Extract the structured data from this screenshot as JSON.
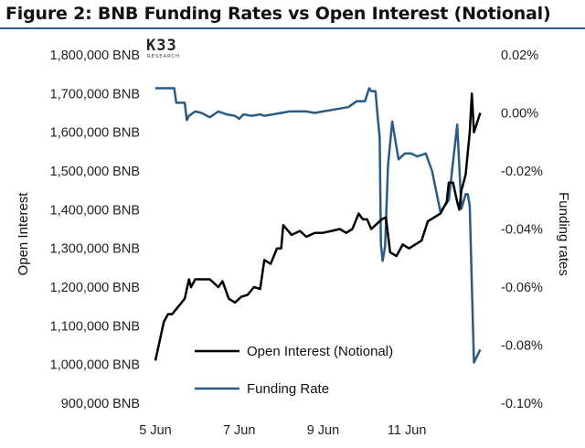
{
  "title": "Figure 2: BNB Funding Rates vs Open Interest (Notional)",
  "logo": {
    "main": "K33",
    "sub": "RESEARCH"
  },
  "colors": {
    "open_interest": "#000000",
    "funding_rate": "#2b5a84",
    "title_rule": "#2b5a84"
  },
  "chart_data": {
    "type": "line",
    "title": "Figure 2: BNB Funding Rates vs Open Interest (Notional)",
    "ylabel_left": "Open Interest",
    "ylabel_right": "Funding rates",
    "xlim": [
      5.0,
      12.85
    ],
    "ylim_left": [
      900000,
      1800000
    ],
    "ylim_right": [
      -0.1,
      0.02
    ],
    "x_ticks": [
      {
        "value": 5,
        "label": "5 Jun"
      },
      {
        "value": 7,
        "label": "7 Jun"
      },
      {
        "value": 9,
        "label": "9 Jun"
      },
      {
        "value": 11,
        "label": "11 Jun"
      }
    ],
    "y_ticks_left": [
      {
        "value": 1800000,
        "label": "1,800,000 BNB"
      },
      {
        "value": 1700000,
        "label": "1,700,000 BNB"
      },
      {
        "value": 1600000,
        "label": "1,600,000 BNB"
      },
      {
        "value": 1500000,
        "label": "1,500,000 BNB"
      },
      {
        "value": 1400000,
        "label": "1,400,000 BNB"
      },
      {
        "value": 1300000,
        "label": "1,300,000 BNB"
      },
      {
        "value": 1200000,
        "label": "1,200,000 BNB"
      },
      {
        "value": 1100000,
        "label": "1,100,000 BNB"
      },
      {
        "value": 1000000,
        "label": "1,000,000 BNB"
      },
      {
        "value": 900000,
        "label": "900,000 BNB"
      }
    ],
    "y_ticks_right": [
      {
        "value": 0.02,
        "label": "0.02%"
      },
      {
        "value": 0.0,
        "label": "0.00%"
      },
      {
        "value": -0.02,
        "label": "-0.02%"
      },
      {
        "value": -0.04,
        "label": "-0.04%"
      },
      {
        "value": -0.06,
        "label": "-0.06%"
      },
      {
        "value": -0.08,
        "label": "-0.08%"
      },
      {
        "value": -0.1,
        "label": "-0.10%"
      }
    ],
    "legend_position": "bottom-center",
    "grid": false,
    "series": [
      {
        "name": "Open Interest (Notional)",
        "axis": "left",
        "x": [
          5.0,
          5.1,
          5.2,
          5.3,
          5.4,
          5.55,
          5.7,
          5.8,
          5.85,
          5.95,
          6.1,
          6.3,
          6.5,
          6.6,
          6.75,
          6.9,
          7.05,
          7.2,
          7.35,
          7.5,
          7.6,
          7.75,
          7.9,
          8.0,
          8.05,
          8.25,
          8.45,
          8.6,
          8.8,
          9.0,
          9.2,
          9.4,
          9.55,
          9.7,
          9.85,
          9.95,
          10.05,
          10.15,
          10.3,
          10.4,
          10.5,
          10.6,
          10.75,
          10.9,
          11.05,
          11.2,
          11.35,
          11.5,
          11.65,
          11.8,
          11.95,
          12.0,
          12.1,
          12.2,
          12.25,
          12.3,
          12.4,
          12.5,
          12.55,
          12.6,
          12.75
        ],
        "values": [
          1010000,
          1060000,
          1110000,
          1130000,
          1130000,
          1150000,
          1170000,
          1220000,
          1200000,
          1220000,
          1220000,
          1220000,
          1200000,
          1215000,
          1170000,
          1160000,
          1175000,
          1180000,
          1200000,
          1195000,
          1270000,
          1260000,
          1300000,
          1300000,
          1360000,
          1335000,
          1345000,
          1330000,
          1340000,
          1340000,
          1345000,
          1350000,
          1340000,
          1350000,
          1390000,
          1375000,
          1375000,
          1350000,
          1365000,
          1375000,
          1380000,
          1290000,
          1280000,
          1310000,
          1300000,
          1310000,
          1320000,
          1370000,
          1380000,
          1390000,
          1420000,
          1470000,
          1470000,
          1420000,
          1400000,
          1450000,
          1490000,
          1600000,
          1700000,
          1600000,
          1650000
        ]
      },
      {
        "name": "Funding Rate",
        "axis": "right",
        "x": [
          5.0,
          5.3,
          5.45,
          5.5,
          5.7,
          5.75,
          5.8,
          5.95,
          6.1,
          6.3,
          6.5,
          6.7,
          6.9,
          7.0,
          7.1,
          7.3,
          7.5,
          7.6,
          7.8,
          8.0,
          8.2,
          8.4,
          8.6,
          8.8,
          9.0,
          9.2,
          9.4,
          9.6,
          9.8,
          10.0,
          10.1,
          10.15,
          10.25,
          10.3,
          10.35,
          10.38,
          10.42,
          10.48,
          10.55,
          10.65,
          10.8,
          10.95,
          11.1,
          11.25,
          11.45,
          11.6,
          11.8,
          12.0,
          12.2,
          12.3,
          12.4,
          12.45,
          12.5,
          12.6,
          12.75
        ],
        "values": [
          0.0085,
          0.0085,
          0.0085,
          0.0035,
          0.0035,
          -0.0025,
          -0.001,
          0.0005,
          0.0,
          -0.0015,
          0.0005,
          -0.0005,
          -0.001,
          -0.002,
          -0.0005,
          -0.001,
          -0.0005,
          -0.001,
          -0.0005,
          0.0,
          0.0005,
          0.0005,
          0.0005,
          0.0,
          0.0005,
          0.001,
          0.0015,
          0.002,
          0.004,
          0.004,
          0.0085,
          0.0075,
          0.0075,
          -0.001,
          -0.0085,
          -0.045,
          -0.051,
          -0.046,
          -0.018,
          -0.003,
          -0.016,
          -0.014,
          -0.014,
          -0.015,
          -0.014,
          -0.02,
          -0.034,
          -0.03,
          -0.004,
          -0.033,
          -0.028,
          -0.028,
          -0.032,
          -0.086,
          -0.0815
        ]
      }
    ]
  }
}
